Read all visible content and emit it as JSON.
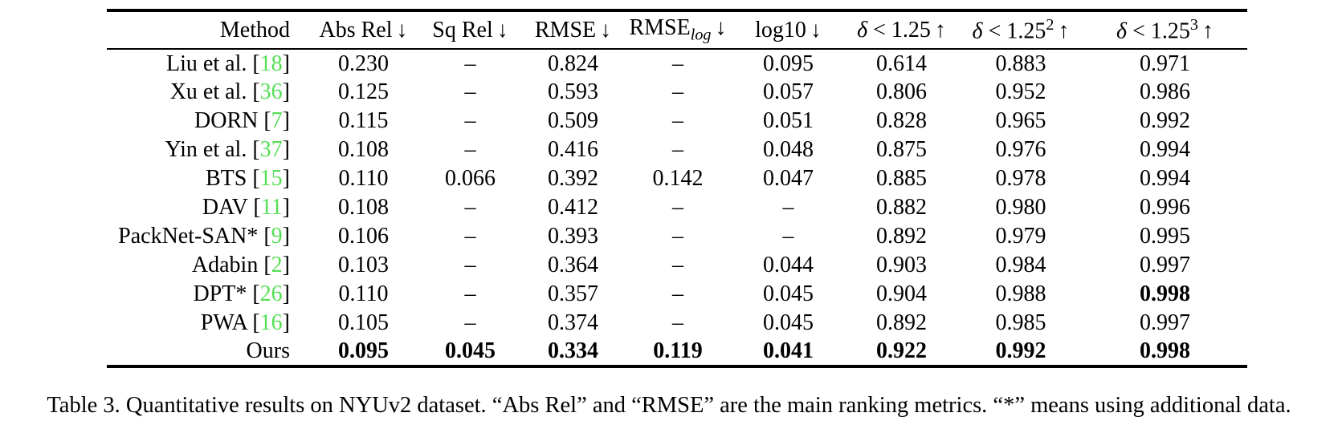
{
  "table": {
    "columns": [
      {
        "label": "Method",
        "arrow": ""
      },
      {
        "label": "Abs Rel",
        "arrow": "↓"
      },
      {
        "label": "Sq Rel",
        "arrow": "↓"
      },
      {
        "label": "RMSE",
        "arrow": "↓"
      },
      {
        "label": "RMSE",
        "sub": "log",
        "arrow": "↓"
      },
      {
        "label": "log10",
        "arrow": "↓"
      },
      {
        "label": "δ < 1.25",
        "arrow": "↑"
      },
      {
        "label": "δ < 1.25",
        "sup": "2",
        "arrow": "↑"
      },
      {
        "label": "δ < 1.25",
        "sup": "3",
        "arrow": "↑"
      }
    ],
    "rows": [
      {
        "method": "Liu et al.",
        "cite": "18",
        "values": [
          "0.230",
          "–",
          "0.824",
          "–",
          "0.095",
          "0.614",
          "0.883",
          "0.971"
        ],
        "bold": []
      },
      {
        "method": "Xu et al.",
        "cite": "36",
        "values": [
          "0.125",
          "–",
          "0.593",
          "–",
          "0.057",
          "0.806",
          "0.952",
          "0.986"
        ],
        "bold": []
      },
      {
        "method": "DORN",
        "cite": "7",
        "values": [
          "0.115",
          "–",
          "0.509",
          "–",
          "0.051",
          "0.828",
          "0.965",
          "0.992"
        ],
        "bold": []
      },
      {
        "method": "Yin et al.",
        "cite": "37",
        "values": [
          "0.108",
          "–",
          "0.416",
          "–",
          "0.048",
          "0.875",
          "0.976",
          "0.994"
        ],
        "bold": []
      },
      {
        "method": "BTS",
        "cite": "15",
        "values": [
          "0.110",
          "0.066",
          "0.392",
          "0.142",
          "0.047",
          "0.885",
          "0.978",
          "0.994"
        ],
        "bold": []
      },
      {
        "method": "DAV",
        "cite": "11",
        "values": [
          "0.108",
          "–",
          "0.412",
          "–",
          "–",
          "0.882",
          "0.980",
          "0.996"
        ],
        "bold": []
      },
      {
        "method": "PackNet-SAN*",
        "cite": "9",
        "values": [
          "0.106",
          "–",
          "0.393",
          "–",
          "–",
          "0.892",
          "0.979",
          "0.995"
        ],
        "bold": []
      },
      {
        "method": "Adabin",
        "cite": "2",
        "values": [
          "0.103",
          "–",
          "0.364",
          "–",
          "0.044",
          "0.903",
          "0.984",
          "0.997"
        ],
        "bold": []
      },
      {
        "method": "DPT*",
        "cite": "26",
        "values": [
          "0.110",
          "–",
          "0.357",
          "–",
          "0.045",
          "0.904",
          "0.988",
          "0.998"
        ],
        "bold": [
          7
        ]
      },
      {
        "method": "PWA",
        "cite": "16",
        "values": [
          "0.105",
          "–",
          "0.374",
          "–",
          "0.045",
          "0.892",
          "0.985",
          "0.997"
        ],
        "bold": []
      },
      {
        "method": "Ours",
        "cite": null,
        "values": [
          "0.095",
          "0.045",
          "0.334",
          "0.119",
          "0.041",
          "0.922",
          "0.992",
          "0.998"
        ],
        "bold": [
          0,
          1,
          2,
          3,
          4,
          5,
          6,
          7
        ]
      }
    ]
  },
  "caption": "Table 3. Quantitative results on NYUv2 dataset. “Abs Rel” and “RMSE” are the main ranking metrics. “*” means using additional data.",
  "colors": {
    "cite_green": "#55DE55",
    "text": "#000000",
    "background": "#FFFFFF"
  }
}
